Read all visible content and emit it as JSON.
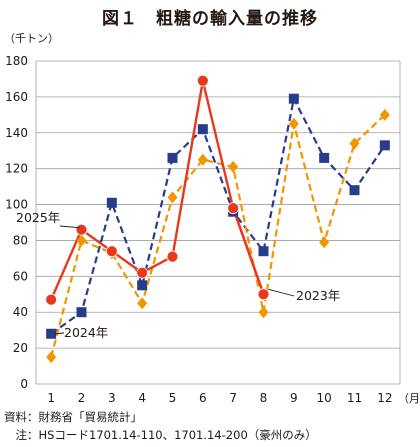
{
  "chart_data": {
    "type": "line",
    "title": "図１　粗糖の輸入量の推移",
    "ylabel": "（千トン）",
    "xlabel": "（月）",
    "categories": [
      "1",
      "2",
      "3",
      "4",
      "5",
      "6",
      "7",
      "8",
      "9",
      "10",
      "11",
      "12"
    ],
    "ylim": [
      0,
      180
    ],
    "yticks": [
      0,
      20,
      40,
      60,
      80,
      100,
      120,
      140,
      160,
      180
    ],
    "grid": true,
    "series": [
      {
        "name": "2023年",
        "color": "#e8391d",
        "style": "solid",
        "marker": "circle",
        "values": [
          null,
          null,
          null,
          null,
          null,
          null,
          98,
          50,
          null,
          null,
          null,
          null
        ]
      },
      {
        "name": "2024年",
        "color": "#283c8c",
        "style": "dashed",
        "marker": "square",
        "values": [
          28,
          40,
          101,
          55,
          126,
          142,
          96,
          74,
          159,
          126,
          108,
          133
        ]
      },
      {
        "name": "",
        "color": "#f29600",
        "style": "dashed",
        "marker": "diamond",
        "values": [
          15,
          80,
          73,
          45,
          104,
          125,
          121,
          40,
          145,
          79,
          134,
          150
        ]
      },
      {
        "name": "2025年",
        "color": "#e8391d",
        "style": "solid",
        "marker": "circle",
        "values": [
          47,
          86,
          74,
          62,
          71,
          169,
          98,
          50,
          null,
          null,
          null,
          null
        ]
      }
    ]
  },
  "notes": {
    "source": "資料：財務省「貿易統計」",
    "note": "　注：HSコード1701.14-110、1701.14-200（豪州のみ）"
  }
}
